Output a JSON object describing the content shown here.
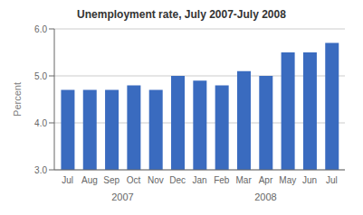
{
  "chart_data": {
    "type": "bar",
    "title": "Unemployment rate, July 2007-July 2008",
    "ylabel": "Percent",
    "categories": [
      "Jul",
      "Aug",
      "Sep",
      "Oct",
      "Nov",
      "Dec",
      "Jan",
      "Feb",
      "Mar",
      "Apr",
      "May",
      "Jun",
      "Jul"
    ],
    "values": [
      4.7,
      4.7,
      4.7,
      4.8,
      4.7,
      5.0,
      4.9,
      4.8,
      5.1,
      5.0,
      5.5,
      5.5,
      5.7
    ],
    "color": "#3a6bbf",
    "ylim": [
      3.0,
      6.0
    ],
    "yticks": [
      {
        "value": 3.0,
        "label": "3.0"
      },
      {
        "value": 4.0,
        "label": "4.0"
      },
      {
        "value": 5.0,
        "label": "5.0"
      },
      {
        "value": 6.0,
        "label": "6.0"
      }
    ],
    "annotations": [
      {
        "text": "2007",
        "x": 2.5
      },
      {
        "text": "2008",
        "x": 9.0
      }
    ],
    "grid": true
  }
}
